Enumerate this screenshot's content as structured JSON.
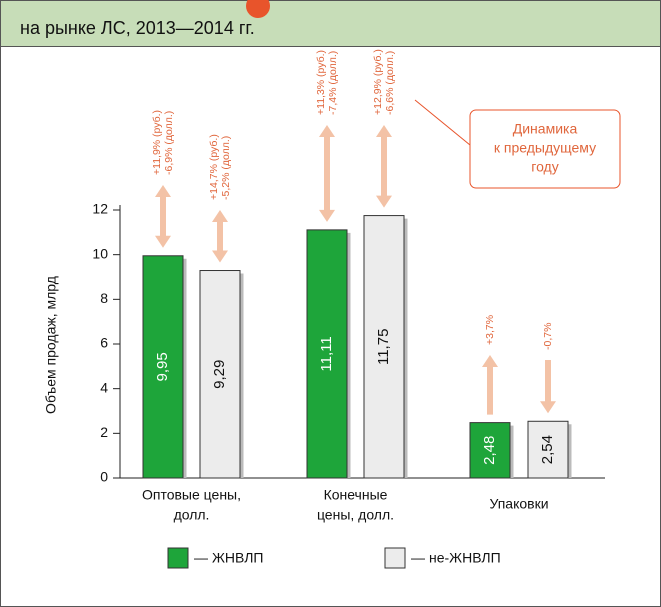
{
  "chart_data": {
    "type": "bar",
    "title": "на рынке ЛС, 2013—2014 гг.",
    "ylabel": "Объем продаж, млрд",
    "categories": [
      [
        "Оптовые цены,",
        "долл."
      ],
      [
        "Конечные",
        "цены, долл."
      ],
      [
        "Упаковки"
      ]
    ],
    "series": [
      {
        "name": "ЖНВЛП",
        "color": "#1ea53a",
        "values": [
          9.95,
          11.11,
          2.48
        ],
        "value_labels": [
          "9,95",
          "11,11",
          "2,48"
        ],
        "annotations": [
          [
            "+11,9% (руб.)",
            "-6,9% (долл.)"
          ],
          [
            "+11,3% (руб.)",
            "-7,4% (долл.)"
          ],
          [
            "+3,7%"
          ]
        ]
      },
      {
        "name": "не-ЖНВЛП",
        "color": "#ececec",
        "values": [
          9.29,
          11.75,
          2.54
        ],
        "value_labels": [
          "9,29",
          "11,75",
          "2,54"
        ],
        "annotations": [
          [
            "+14,7% (руб.)",
            "-5,2% (долл.)"
          ],
          [
            "+12,9% (руб.)",
            "-6,6% (долл.)"
          ],
          [
            "-0,7%"
          ]
        ]
      }
    ],
    "ylim": [
      0,
      12
    ],
    "yticks": [
      0,
      2,
      4,
      6,
      8,
      10,
      12
    ],
    "callout": [
      "Динамика",
      "к предыдущему",
      "году"
    ]
  }
}
